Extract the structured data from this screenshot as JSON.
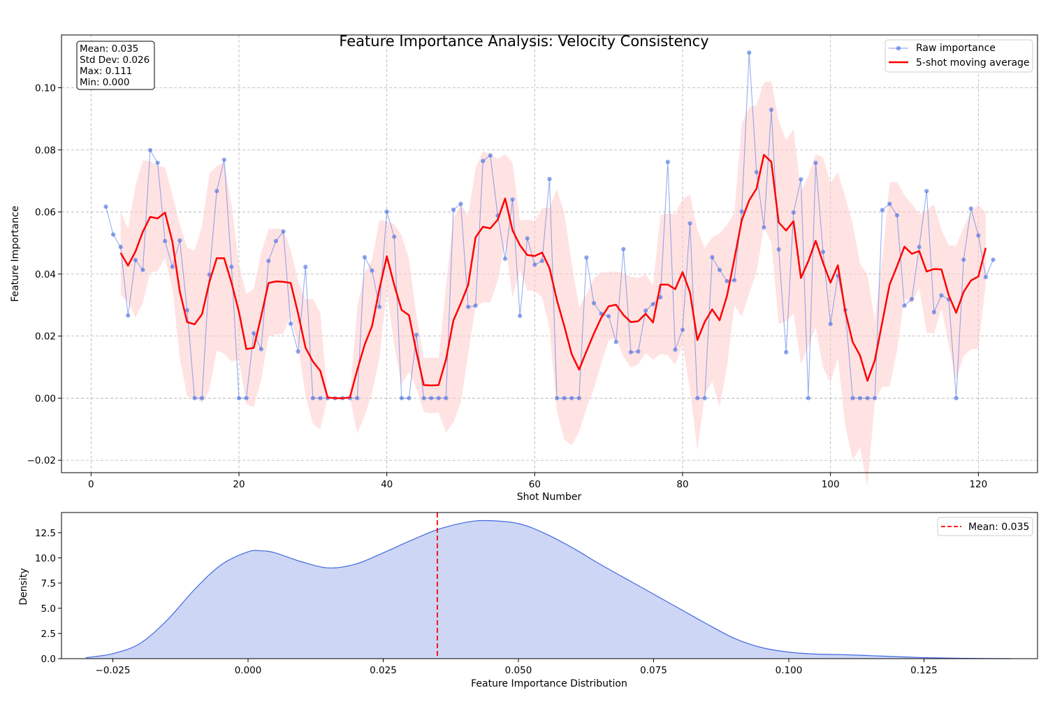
{
  "chart_data": [
    {
      "type": "line",
      "title": "Feature Importance Analysis: Velocity Consistency",
      "xlabel": "Shot Number",
      "ylabel": "Feature Importance",
      "xlim": [
        -4,
        128
      ],
      "ylim": [
        -0.024,
        0.117
      ],
      "xticks": [
        0,
        20,
        40,
        60,
        80,
        100,
        120
      ],
      "xtick_labels": [
        "0",
        "20",
        "40",
        "60",
        "80",
        "100",
        "120"
      ],
      "yticks": [
        -0.02,
        0.0,
        0.02,
        0.04,
        0.06,
        0.08,
        0.1
      ],
      "ytick_labels": [
        "−0.02",
        "0.00",
        "0.02",
        "0.04",
        "0.06",
        "0.08",
        "0.10"
      ],
      "grid": true,
      "legend_position": "top-right",
      "stats_box": [
        "Mean: 0.035",
        "Std Dev: 0.026",
        "Max: 0.111",
        "Min: 0.000"
      ],
      "colors": {
        "raw": "#4169e1",
        "avg": "#ff0000",
        "band": "#ffcccc"
      },
      "series": [
        {
          "name": "Raw importance",
          "x_start": 2,
          "values": [
            0.0617,
            0.0527,
            0.0487,
            0.0266,
            0.0445,
            0.0413,
            0.0799,
            0.0758,
            0.0506,
            0.0423,
            0.0508,
            0.0283,
            0.0,
            0.0,
            0.0398,
            0.0667,
            0.0768,
            0.0423,
            0.0,
            0.0,
            0.0209,
            0.0158,
            0.0442,
            0.0506,
            0.0537,
            0.024,
            0.015,
            0.0423,
            0.0,
            0.0,
            0.0,
            0.0,
            0.0,
            0.0,
            0.0,
            0.0454,
            0.0411,
            0.0294,
            0.0601,
            0.052,
            0.0,
            0.0,
            0.0204,
            0.0,
            0.0,
            0.0,
            0.0,
            0.0607,
            0.0626,
            0.0294,
            0.0298,
            0.0764,
            0.0782,
            0.0588,
            0.0449,
            0.064,
            0.0265,
            0.0515,
            0.043,
            0.0442,
            0.0706,
            0.0,
            0.0,
            0.0,
            0.0,
            0.0453,
            0.0306,
            0.0272,
            0.0264,
            0.0181,
            0.048,
            0.0148,
            0.015,
            0.0282,
            0.0303,
            0.0325,
            0.0761,
            0.0156,
            0.022,
            0.0563,
            0.0,
            0.0,
            0.0454,
            0.0413,
            0.0377,
            0.038,
            0.0601,
            0.1113,
            0.0728,
            0.055,
            0.0929,
            0.0479,
            0.0148,
            0.0598,
            0.0705,
            0.0,
            0.0758,
            0.0471,
            0.0239,
            0.0395,
            0.0284,
            0.0,
            0.0,
            0.0,
            0.0,
            0.0606,
            0.0626,
            0.0589,
            0.0298,
            0.0319,
            0.0487,
            0.0667,
            0.0277,
            0.0331,
            0.0318,
            0.0,
            0.0446,
            0.0611,
            0.0524,
            0.039,
            0.0446
          ]
        },
        {
          "name": "5-shot moving average",
          "x_start": 4,
          "values": [
            0.0468,
            0.0427,
            0.0472,
            0.0536,
            0.0584,
            0.0579,
            0.0598,
            0.0504,
            0.0344,
            0.0245,
            0.0238,
            0.027,
            0.0374,
            0.0451,
            0.0451,
            0.0371,
            0.0278,
            0.0158,
            0.0162,
            0.0263,
            0.0371,
            0.0376,
            0.0375,
            0.0371,
            0.0273,
            0.0163,
            0.0118,
            0.0088,
            0.0002,
            0.0,
            0.0,
            0.0002,
            0.0091,
            0.0172,
            0.0232,
            0.0352,
            0.0457,
            0.0365,
            0.0284,
            0.0267,
            0.0149,
            0.0042,
            0.0041,
            0.0042,
            0.0124,
            0.025,
            0.0305,
            0.0365,
            0.0518,
            0.0552,
            0.0547,
            0.0575,
            0.0643,
            0.0541,
            0.0493,
            0.0461,
            0.0458,
            0.0469,
            0.0419,
            0.0316,
            0.0232,
            0.0142,
            0.0092,
            0.0151,
            0.0208,
            0.0259,
            0.0296,
            0.0301,
            0.0268,
            0.0245,
            0.0248,
            0.0272,
            0.0244,
            0.0366,
            0.0366,
            0.0351,
            0.0406,
            0.0341,
            0.0187,
            0.0246,
            0.0286,
            0.0251,
            0.0329,
            0.0448,
            0.0573,
            0.0637,
            0.0675,
            0.0784,
            0.0761,
            0.0566,
            0.054,
            0.057,
            0.0387,
            0.0441,
            0.0507,
            0.0436,
            0.0372,
            0.0428,
            0.0279,
            0.0181,
            0.0137,
            0.0056,
            0.0122,
            0.0244,
            0.0366,
            0.0425,
            0.0488,
            0.0465,
            0.0474,
            0.0408,
            0.0416,
            0.0415,
            0.0331,
            0.0275,
            0.0342,
            0.0379,
            0.0392,
            0.0484
          ]
        }
      ],
      "band": {
        "x_start": 4,
        "upper": [
          0.0603,
          0.0545,
          0.0685,
          0.0766,
          0.0763,
          0.0749,
          0.0744,
          0.0655,
          0.0559,
          0.0485,
          0.0475,
          0.0554,
          0.0723,
          0.0748,
          0.0759,
          0.0624,
          0.0432,
          0.0335,
          0.0353,
          0.0469,
          0.0544,
          0.0547,
          0.0543,
          0.0478,
          0.0377,
          0.0318,
          0.0319,
          0.0276,
          0.0003,
          0.0,
          0.0,
          0.0003,
          0.0295,
          0.0402,
          0.0446,
          0.0575,
          0.0569,
          0.0561,
          0.0524,
          0.0449,
          0.0267,
          0.0129,
          0.0131,
          0.013,
          0.0359,
          0.0579,
          0.0625,
          0.0588,
          0.0742,
          0.0795,
          0.0786,
          0.0771,
          0.0785,
          0.0759,
          0.0573,
          0.0575,
          0.0571,
          0.0613,
          0.0613,
          0.0674,
          0.0597,
          0.0436,
          0.0293,
          0.0335,
          0.0386,
          0.0406,
          0.0406,
          0.0408,
          0.0403,
          0.0391,
          0.0387,
          0.0399,
          0.0364,
          0.059,
          0.0594,
          0.0595,
          0.0641,
          0.0656,
          0.0543,
          0.0483,
          0.0518,
          0.0531,
          0.0558,
          0.0598,
          0.0884,
          0.0937,
          0.0945,
          0.1017,
          0.1021,
          0.0893,
          0.0832,
          0.0867,
          0.0666,
          0.0715,
          0.0786,
          0.0775,
          0.0694,
          0.0728,
          0.0648,
          0.0562,
          0.0434,
          0.0397,
          0.0252,
          0.0452,
          0.0695,
          0.0697,
          0.0653,
          0.0626,
          0.0592,
          0.0605,
          0.0624,
          0.0542,
          0.0493,
          0.0491,
          0.0549,
          0.0601,
          0.0624,
          0.0598
        ]
      }
    },
    {
      "type": "area",
      "xlabel": "Feature Importance Distribution",
      "ylabel": "Density",
      "xlim": [
        -0.0345,
        0.146
      ],
      "ylim": [
        0,
        14.5
      ],
      "xticks": [
        -0.025,
        0.0,
        0.025,
        0.05,
        0.075,
        0.1,
        0.125
      ],
      "xtick_labels": [
        "−0.025",
        "0.000",
        "0.025",
        "0.050",
        "0.075",
        "0.100",
        "0.125"
      ],
      "yticks": [
        0.0,
        2.5,
        5.0,
        7.5,
        10.0,
        12.5
      ],
      "ytick_labels": [
        "0.0",
        "2.5",
        "5.0",
        "7.5",
        "10.0",
        "12.5"
      ],
      "legend_position": "top-right",
      "legend_label": "Mean: 0.035",
      "mean_line": 0.035,
      "colors": {
        "fill": "#cdd6f4",
        "line": "#4169e1",
        "mean": "#ff0000"
      },
      "x": [
        -0.03,
        -0.025,
        -0.02,
        -0.015,
        -0.01,
        -0.005,
        0.0,
        0.0025,
        0.005,
        0.01,
        0.015,
        0.02,
        0.025,
        0.03,
        0.035,
        0.04,
        0.044,
        0.05,
        0.055,
        0.06,
        0.065,
        0.07,
        0.075,
        0.08,
        0.085,
        0.09,
        0.095,
        0.1,
        0.105,
        0.11,
        0.115,
        0.12,
        0.125,
        0.13,
        0.135,
        0.141
      ],
      "values": [
        0.1,
        0.5,
        1.5,
        3.8,
        6.8,
        9.3,
        10.6,
        10.7,
        10.5,
        9.6,
        9.0,
        9.4,
        10.5,
        11.7,
        12.8,
        13.5,
        13.7,
        13.4,
        12.4,
        11.0,
        9.4,
        7.9,
        6.4,
        4.9,
        3.4,
        2.0,
        1.1,
        0.65,
        0.45,
        0.4,
        0.3,
        0.2,
        0.1,
        0.05,
        0.02,
        0.0
      ]
    }
  ]
}
